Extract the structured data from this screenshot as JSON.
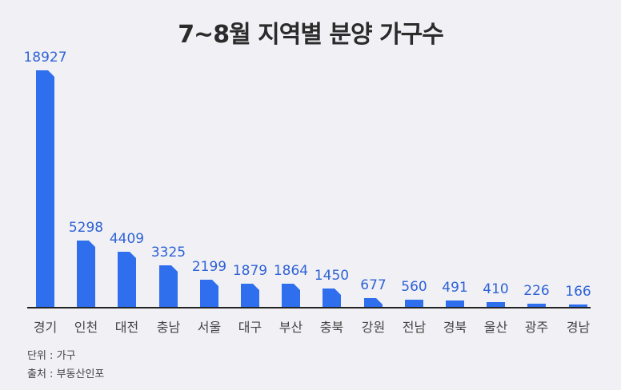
{
  "chart_data": {
    "type": "bar",
    "title": "7~8월 지역별 분양 가구수",
    "xlabel": "",
    "ylabel": "",
    "categories": [
      "경기",
      "인천",
      "대전",
      "충남",
      "서울",
      "대구",
      "부산",
      "충북",
      "강원",
      "전남",
      "경북",
      "울산",
      "광주",
      "경남"
    ],
    "values": [
      18927,
      5298,
      4409,
      3325,
      2199,
      1879,
      1864,
      1450,
      677,
      560,
      491,
      410,
      226,
      166
    ],
    "ylim": [
      0,
      18927
    ],
    "grid": false,
    "legend": null,
    "bar_color": "#2f6fee",
    "label_color": "#2f62d6"
  },
  "footer": {
    "unit": "단위 :  가구",
    "source": "출처 : 부동산인포"
  }
}
